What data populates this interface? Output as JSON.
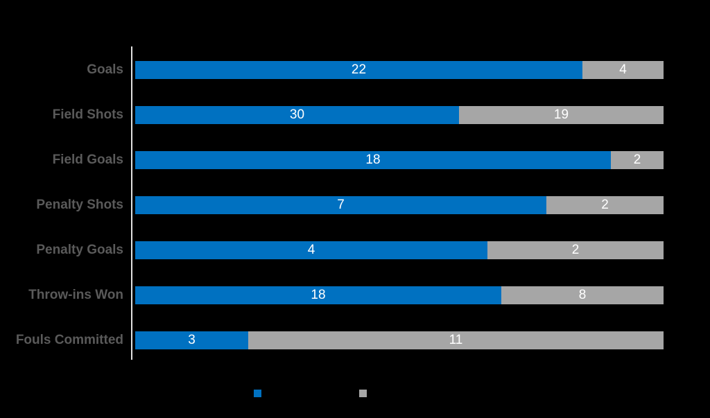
{
  "background_color": "#000000",
  "chart_data": {
    "type": "bar",
    "orientation": "horizontal",
    "stacking": "100%-stacked",
    "title": "",
    "xlabel": "",
    "ylabel": "",
    "grid": false,
    "categories": [
      "Goals",
      "Field Shots",
      "Field Goals",
      "Penalty Shots",
      "Penalty Goals",
      "Throw-ins Won",
      "Fouls Committed"
    ],
    "series": [
      {
        "name": "blue-series",
        "color": "#0071C1",
        "values": [
          22,
          30,
          18,
          7,
          4,
          18,
          3
        ]
      },
      {
        "name": "gray-series",
        "color": "#A6A6A6",
        "values": [
          4,
          19,
          2,
          2,
          2,
          8,
          11
        ]
      }
    ],
    "value_labels": {
      "visible": true,
      "position": "center",
      "color": "#FFFFFF"
    },
    "category_label_color": "#5A5A5A",
    "axis_line_color": "#E2E2E2",
    "legend": {
      "position": "bottom",
      "labels_visible": false,
      "swatch_colors": [
        "#0071C1",
        "#A6A6A6"
      ]
    }
  }
}
